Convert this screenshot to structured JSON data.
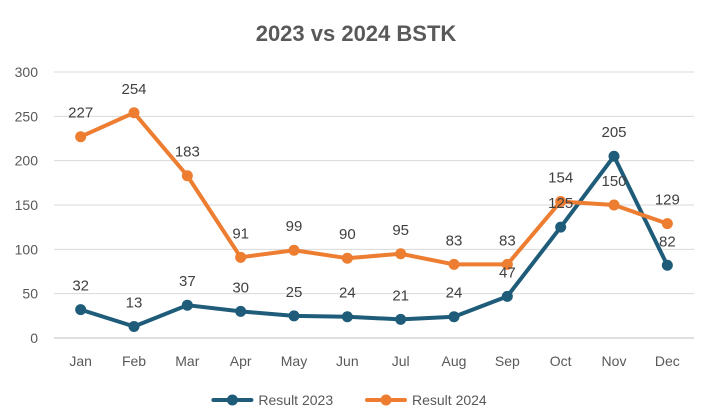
{
  "chart_data": {
    "type": "line",
    "title": "2023 vs 2024 BSTK",
    "xlabel": "",
    "ylabel": "",
    "categories": [
      "Jan",
      "Feb",
      "Mar",
      "Apr",
      "May",
      "Jun",
      "Jul",
      "Aug",
      "Sep",
      "Oct",
      "Nov",
      "Dec"
    ],
    "ylim": [
      0,
      300
    ],
    "yticks": [
      0,
      50,
      100,
      150,
      200,
      250,
      300
    ],
    "grid": true,
    "legend_position": "bottom",
    "series": [
      {
        "name": "Result 2023",
        "color": "#1f5c7a",
        "values": [
          32,
          13,
          37,
          30,
          25,
          24,
          21,
          24,
          47,
          125,
          205,
          82
        ]
      },
      {
        "name": "Result 2024",
        "color": "#ed7d31",
        "values": [
          227,
          254,
          183,
          91,
          99,
          90,
          95,
          83,
          83,
          154,
          150,
          129
        ]
      }
    ]
  }
}
